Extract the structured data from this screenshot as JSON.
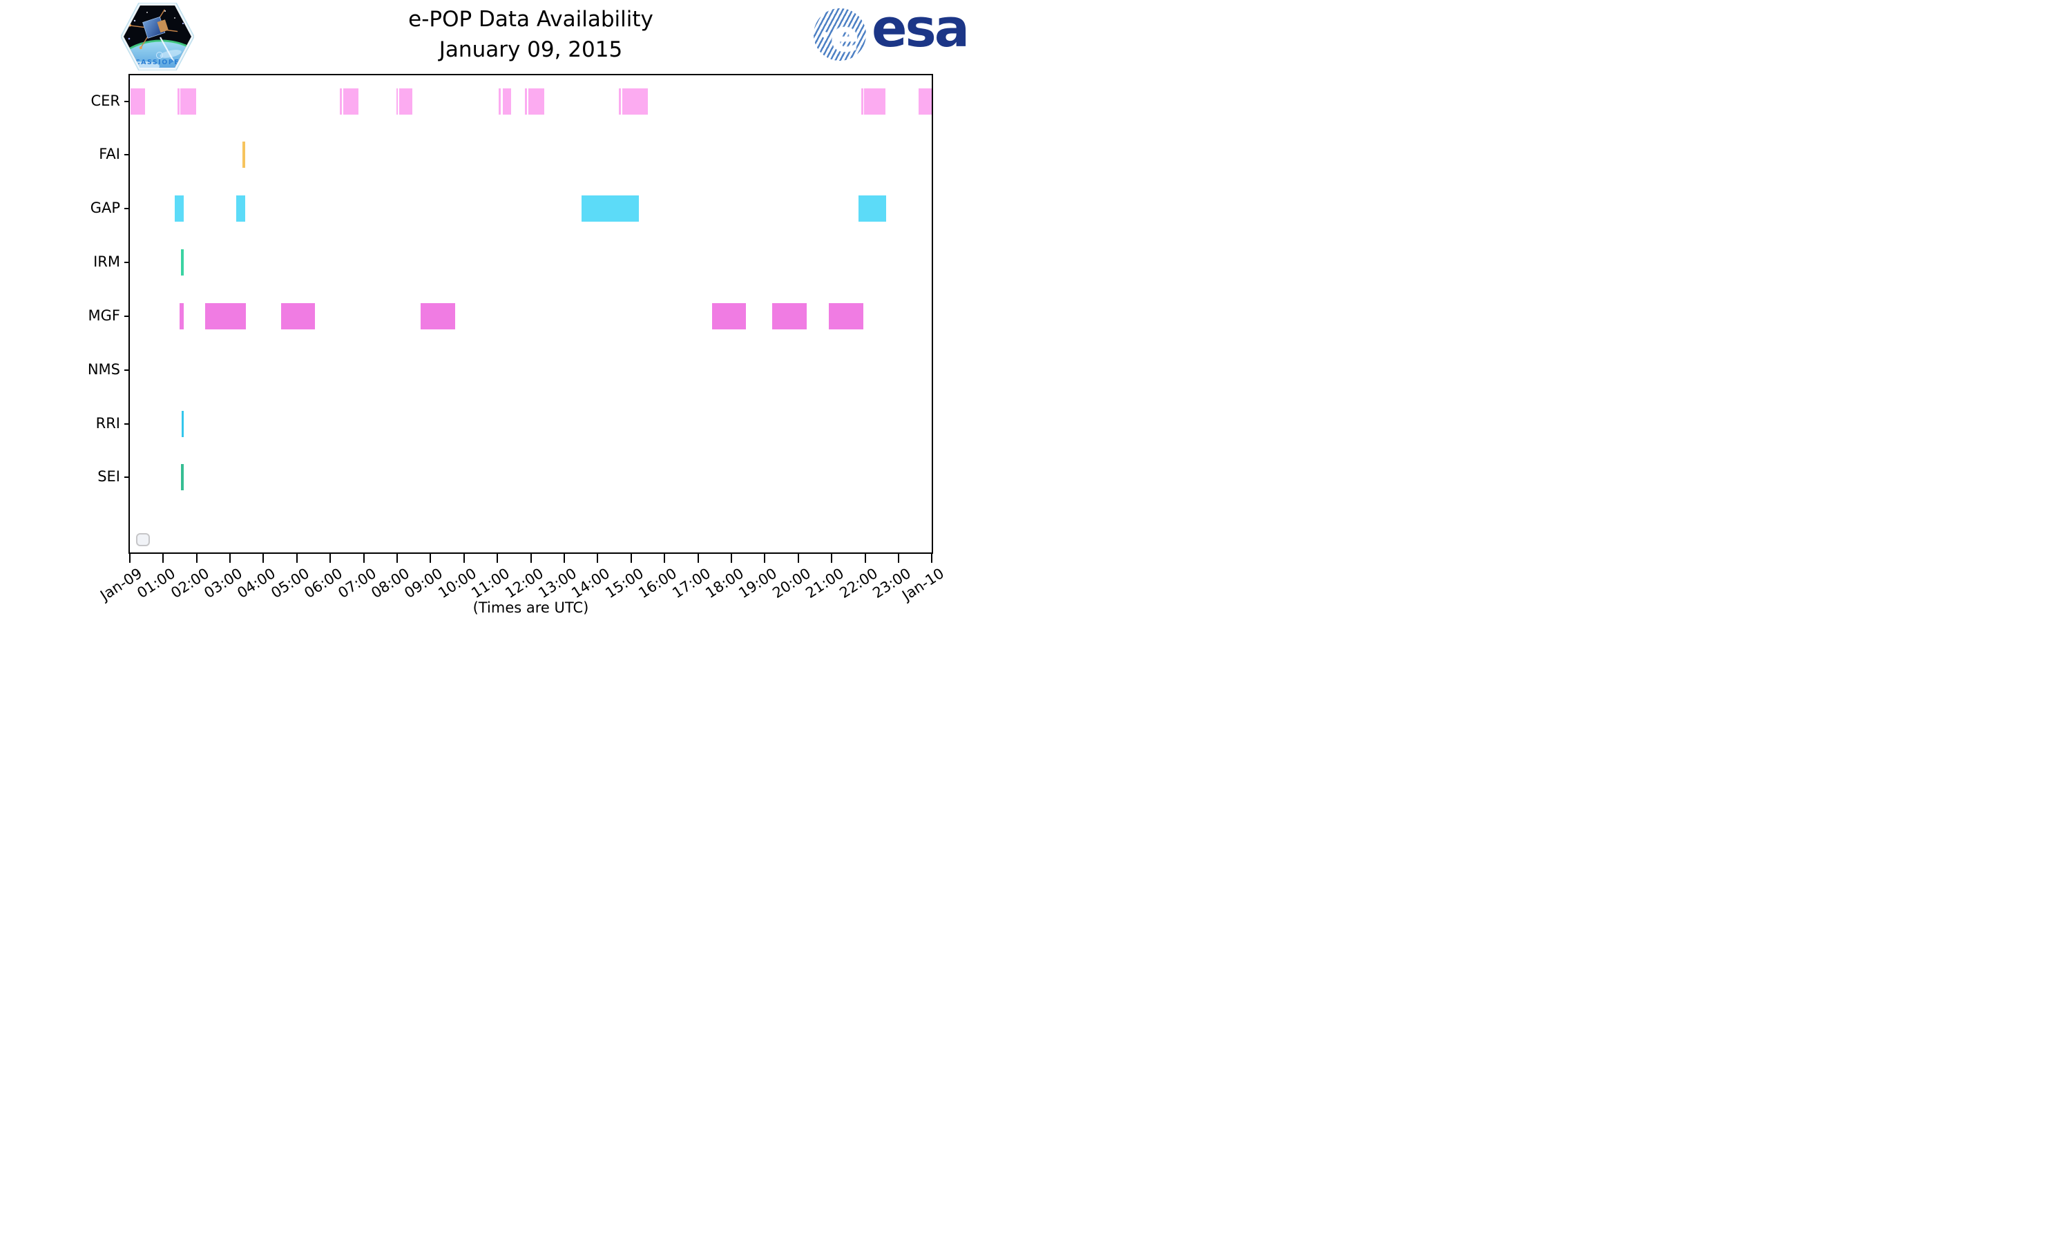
{
  "header": {
    "title_line1": "e-POP Data Availability",
    "title_line2": "January 09, 2015",
    "cassiope_label": "CASSIOPE",
    "esa_wordmark": "esa",
    "esa_globe_letter": "e"
  },
  "axis": {
    "x_tick_labels": [
      "Jan-09",
      "01:00",
      "02:00",
      "03:00",
      "04:00",
      "05:00",
      "06:00",
      "07:00",
      "08:00",
      "09:00",
      "10:00",
      "11:00",
      "12:00",
      "13:00",
      "14:00",
      "15:00",
      "16:00",
      "17:00",
      "18:00",
      "19:00",
      "20:00",
      "21:00",
      "22:00",
      "23:00",
      "Jan-10"
    ],
    "x_axis_note": "(Times are UTC)",
    "hours_start": 0,
    "hours_end": 24
  },
  "colors": {
    "CER": "#fcabf1",
    "FAI": "#f6c45e",
    "GAP": "#5cdbf8",
    "IRM": "#3bd3a2",
    "MGF": "#f07ce3",
    "NMS": "#bbbbbb",
    "RRI": "#33c6ec",
    "SEI": "#36be93",
    "esa_navy": "#1c3687",
    "esa_stripe_blue": "#4d80c4"
  },
  "chart_data": {
    "type": "gantt-availability",
    "title": "e-POP Data Availability",
    "date": "January 09, 2015",
    "x_unit": "UTC time",
    "x_range": [
      "00:00",
      "24:00"
    ],
    "grid": false,
    "rows": [
      {
        "instrument": "CER",
        "color": "#fcabf1",
        "intervals": [
          {
            "start": "00:01",
            "end": "00:27",
            "start_h": 0.02,
            "end_h": 0.45
          },
          {
            "start": "01:26",
            "end": "01:29",
            "start_h": 1.43,
            "end_h": 1.49
          },
          {
            "start": "01:31",
            "end": "01:59",
            "start_h": 1.52,
            "end_h": 1.99
          },
          {
            "start": "06:17",
            "end": "06:20",
            "start_h": 6.28,
            "end_h": 6.34
          },
          {
            "start": "06:23",
            "end": "06:50",
            "start_h": 6.38,
            "end_h": 6.84
          },
          {
            "start": "07:58",
            "end": "08:02",
            "start_h": 7.97,
            "end_h": 8.03
          },
          {
            "start": "08:04",
            "end": "08:28",
            "start_h": 8.06,
            "end_h": 8.46
          },
          {
            "start": "11:02",
            "end": "11:06",
            "start_h": 11.04,
            "end_h": 11.1
          },
          {
            "start": "11:10",
            "end": "11:24",
            "start_h": 11.16,
            "end_h": 11.4
          },
          {
            "start": "11:49",
            "end": "11:53",
            "start_h": 11.82,
            "end_h": 11.88
          },
          {
            "start": "11:56",
            "end": "12:24",
            "start_h": 11.93,
            "end_h": 12.4
          },
          {
            "start": "14:38",
            "end": "14:42",
            "start_h": 14.63,
            "end_h": 14.7
          },
          {
            "start": "14:44",
            "end": "15:29",
            "start_h": 14.73,
            "end_h": 15.49
          },
          {
            "start": "21:53",
            "end": "21:56",
            "start_h": 21.88,
            "end_h": 21.94
          },
          {
            "start": "21:58",
            "end": "22:36",
            "start_h": 21.97,
            "end_h": 22.6
          },
          {
            "start": "23:35",
            "end": "23:40",
            "start_h": 23.59,
            "end_h": 23.66
          },
          {
            "start": "23:40",
            "end": "24:00",
            "start_h": 23.67,
            "end_h": 24.0
          }
        ]
      },
      {
        "instrument": "FAI",
        "color": "#f6c45e",
        "intervals": [
          {
            "start": "03:22",
            "end": "03:28",
            "start_h": 3.37,
            "end_h": 3.46
          }
        ]
      },
      {
        "instrument": "GAP",
        "color": "#5cdbf8",
        "intervals": [
          {
            "start": "01:21",
            "end": "01:37",
            "start_h": 1.35,
            "end_h": 1.62
          },
          {
            "start": "03:11",
            "end": "03:28",
            "start_h": 3.19,
            "end_h": 3.46
          },
          {
            "start": "13:30",
            "end": "15:14",
            "start_h": 13.51,
            "end_h": 15.23
          },
          {
            "start": "21:48",
            "end": "22:37",
            "start_h": 21.8,
            "end_h": 22.62
          }
        ]
      },
      {
        "instrument": "IRM",
        "color": "#3bd3a2",
        "intervals": [
          {
            "start": "01:32",
            "end": "01:37",
            "start_h": 1.54,
            "end_h": 1.61
          }
        ]
      },
      {
        "instrument": "MGF",
        "color": "#f07ce3",
        "intervals": [
          {
            "start": "01:30",
            "end": "01:37",
            "start_h": 1.5,
            "end_h": 1.61
          },
          {
            "start": "02:15",
            "end": "03:29",
            "start_h": 2.25,
            "end_h": 3.48
          },
          {
            "start": "04:32",
            "end": "05:33",
            "start_h": 4.53,
            "end_h": 5.55
          },
          {
            "start": "08:42",
            "end": "09:44",
            "start_h": 8.7,
            "end_h": 9.74
          },
          {
            "start": "17:25",
            "end": "18:26",
            "start_h": 17.42,
            "end_h": 18.44
          },
          {
            "start": "19:13",
            "end": "20:15",
            "start_h": 19.22,
            "end_h": 20.25
          },
          {
            "start": "20:55",
            "end": "21:57",
            "start_h": 20.91,
            "end_h": 21.95
          }
        ]
      },
      {
        "instrument": "NMS",
        "color": "#bbbbbb",
        "intervals": []
      },
      {
        "instrument": "RRI",
        "color": "#33c6ec",
        "intervals": [
          {
            "start": "01:33",
            "end": "01:37",
            "start_h": 1.55,
            "end_h": 1.61
          }
        ]
      },
      {
        "instrument": "SEI",
        "color": "#36be93",
        "intervals": [
          {
            "start": "01:32",
            "end": "01:37",
            "start_h": 1.53,
            "end_h": 1.62
          }
        ]
      }
    ]
  }
}
